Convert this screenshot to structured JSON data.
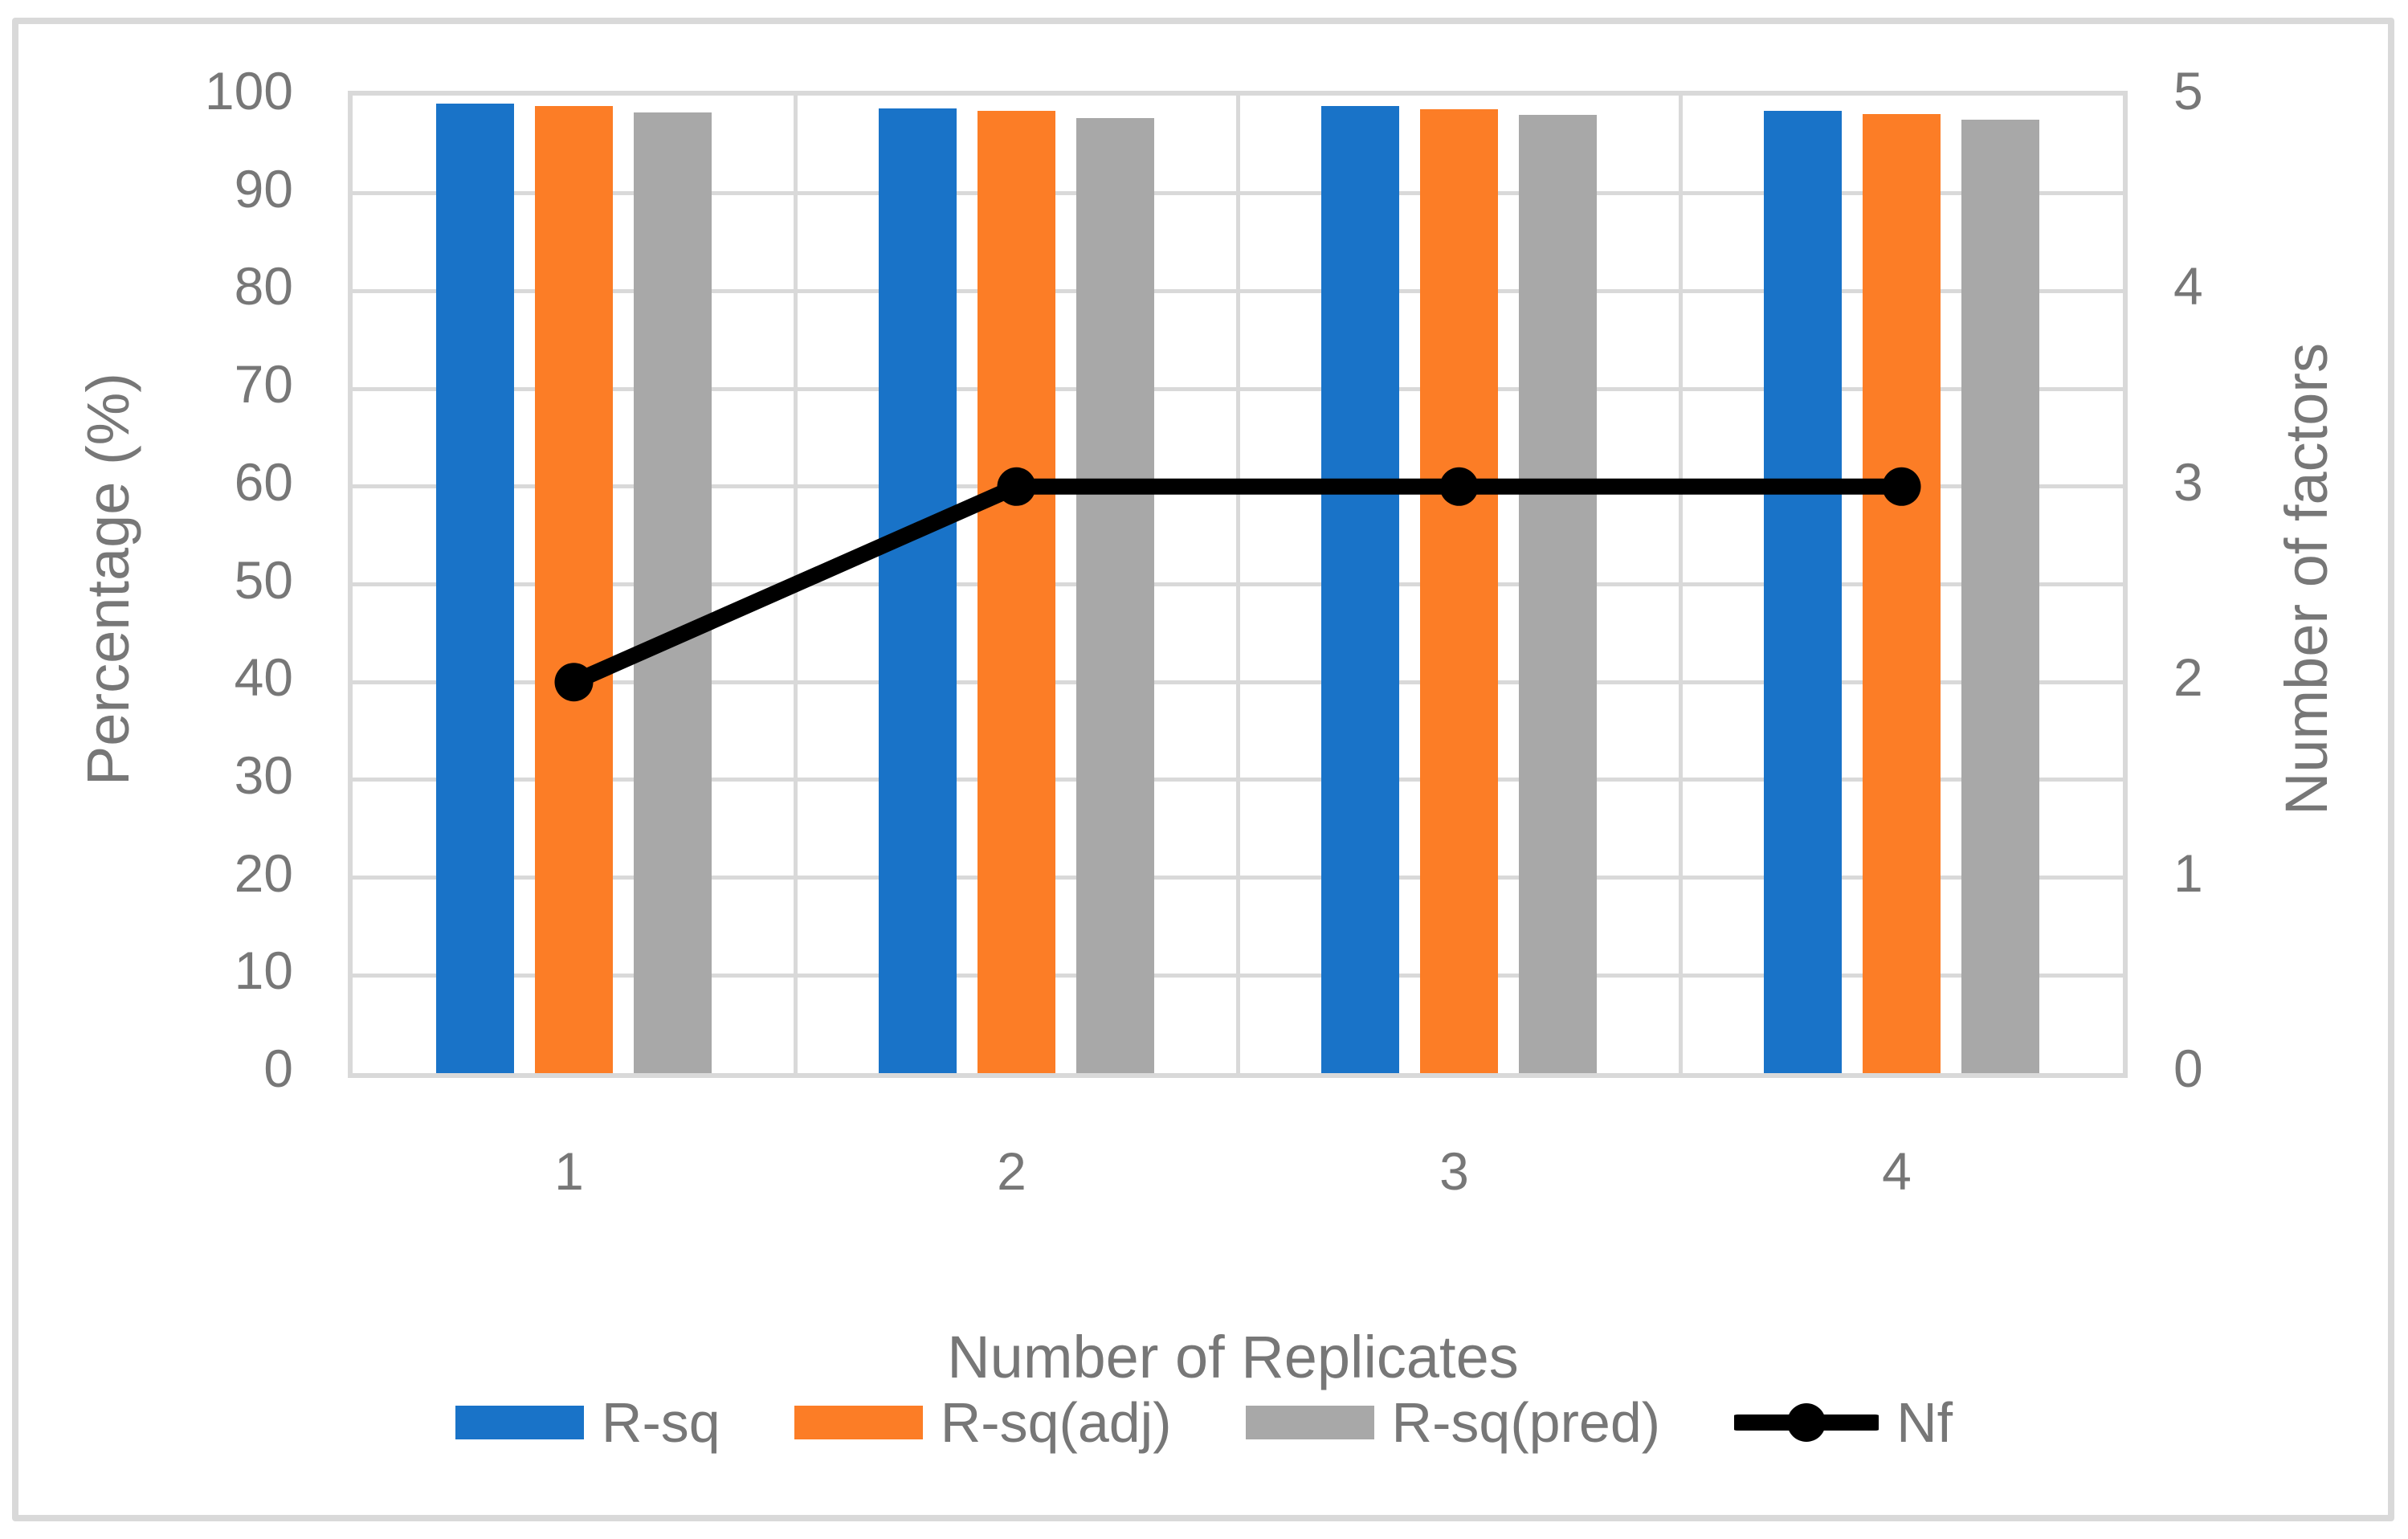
{
  "colors": {
    "background": "#ffffff",
    "frame_border": "#d9d9d9",
    "gridline": "#d9d9d9",
    "text": "#777777",
    "bar_blue": "#1973c8",
    "bar_orange": "#fc7d26",
    "bar_gray": "#a8a8a8",
    "line_black": "#000000"
  },
  "chart_data": {
    "type": "bar",
    "subtype": "grouped bars with overlaid line on secondary axis",
    "title": "",
    "xlabel": "Number of Replicates",
    "ylabel_left": "Percentage (%)",
    "ylabel_right": "Number of factors",
    "categories": [
      "1",
      "2",
      "3",
      "4"
    ],
    "series": [
      {
        "name": "R-sq",
        "type": "bar",
        "axis": "left",
        "color": "#1973c8",
        "values": [
          99.2,
          98.7,
          98.9,
          98.4
        ]
      },
      {
        "name": "R-sq(adj)",
        "type": "bar",
        "axis": "left",
        "color": "#fc7d26",
        "values": [
          98.9,
          98.4,
          98.6,
          98.1
        ]
      },
      {
        "name": "R-sq(pred)",
        "type": "bar",
        "axis": "left",
        "color": "#a8a8a8",
        "values": [
          98.3,
          97.7,
          98.0,
          97.5
        ]
      },
      {
        "name": "Nf",
        "type": "line",
        "axis": "right",
        "color": "#000000",
        "values": [
          2,
          3,
          3,
          3
        ]
      }
    ],
    "ylim_left": [
      0,
      100
    ],
    "yticks_left": [
      0,
      10,
      20,
      30,
      40,
      50,
      60,
      70,
      80,
      90,
      100
    ],
    "ylim_right": [
      0,
      5
    ],
    "yticks_right": [
      0,
      1,
      2,
      3,
      4,
      5
    ],
    "grid": true,
    "legend_position": "bottom",
    "legend_items": [
      "R-sq",
      "R-sq(adj)",
      "R-sq(pred)",
      "Nf"
    ]
  }
}
